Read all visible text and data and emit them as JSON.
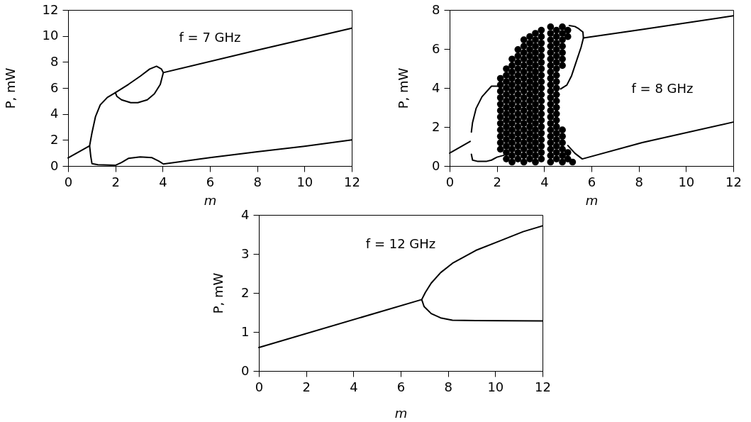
{
  "chart_data": [
    {
      "type": "line",
      "annotations": [
        "f = 7 GHz"
      ],
      "xlabel": "m",
      "ylabel": "P, mW",
      "xlim": [
        0,
        12
      ],
      "ylim": [
        0,
        12
      ],
      "xticks": [
        0,
        2,
        4,
        6,
        8,
        10,
        12
      ],
      "yticks": [
        0,
        2,
        4,
        6,
        8,
        10,
        12
      ],
      "series": [
        {
          "color": "#000000",
          "x": [
            0,
            0.91,
            1.01,
            1.16,
            1.36,
            1.66,
            2.0,
            2.55,
            3.05,
            3.45,
            3.74,
            3.95,
            4.03,
            8.0,
            12
          ],
          "values": [
            0.62,
            1.55,
            2.55,
            3.8,
            4.7,
            5.27,
            5.64,
            6.27,
            6.9,
            7.45,
            7.67,
            7.45,
            7.18,
            8.9,
            10.6
          ]
        },
        {
          "color": "#000000",
          "x": [
            2.0,
            2.06,
            2.26,
            2.65,
            2.95,
            3.35,
            3.65,
            3.9,
            4.03
          ],
          "values": [
            5.64,
            5.36,
            5.09,
            4.87,
            4.87,
            5.09,
            5.55,
            6.27,
            7.18
          ]
        },
        {
          "color": "#000000",
          "x": [
            0.91,
            0.96,
            1.01,
            1.26,
            2.0,
            2.26,
            2.55,
            3.05,
            3.55,
            3.85,
            4.03,
            6.0,
            8.0,
            10.0,
            12
          ],
          "values": [
            1.55,
            0.73,
            0.18,
            0.09,
            0.05,
            0.27,
            0.58,
            0.69,
            0.64,
            0.36,
            0.15,
            0.64,
            1.09,
            1.51,
            2.0
          ]
        }
      ]
    },
    {
      "type": "line",
      "annotations": [
        "f = 8 GHz"
      ],
      "xlabel": "m",
      "ylabel": "P, mW",
      "xlim": [
        0,
        12
      ],
      "ylim": [
        0,
        8
      ],
      "xticks": [
        0,
        2,
        4,
        6,
        8,
        10,
        12
      ],
      "yticks": [
        0,
        2,
        4,
        6,
        8
      ],
      "series": [
        {
          "color": "#000000",
          "x": [
            0,
            0.87
          ],
          "values": [
            0.66,
            1.26
          ]
        },
        {
          "color": "#000000",
          "x": [
            0.92,
            0.97,
            1.12,
            1.37,
            1.77,
            2.07
          ],
          "values": [
            1.74,
            2.23,
            2.95,
            3.55,
            4.09,
            4.09
          ]
        },
        {
          "color": "#000000",
          "x": [
            0.92,
            0.97,
            1.17,
            1.57,
            1.77,
            2.0,
            2.3
          ],
          "values": [
            0.6,
            0.3,
            0.24,
            0.24,
            0.3,
            0.45,
            0.55
          ]
        },
        {
          "type": "scatter",
          "marker": "circle",
          "color": "#000000",
          "x": [
            2.15,
            2.15,
            2.15,
            2.15,
            2.15,
            2.15,
            2.15,
            2.15,
            2.15,
            2.15,
            2.15,
            2.15,
            2.4,
            2.4,
            2.4,
            2.4,
            2.4,
            2.4,
            2.4,
            2.4,
            2.4,
            2.4,
            2.4,
            2.4,
            2.4,
            2.4,
            2.4,
            2.64,
            2.64,
            2.64,
            2.64,
            2.64,
            2.64,
            2.64,
            2.64,
            2.64,
            2.64,
            2.64,
            2.64,
            2.64,
            2.64,
            2.64,
            2.64,
            2.64,
            2.89,
            2.89,
            2.89,
            2.89,
            2.89,
            2.89,
            2.89,
            2.89,
            2.89,
            2.89,
            2.89,
            2.89,
            2.89,
            2.89,
            2.89,
            2.89,
            2.89,
            2.89,
            3.14,
            3.14,
            3.14,
            3.14,
            3.14,
            3.14,
            3.14,
            3.14,
            3.14,
            3.14,
            3.14,
            3.14,
            3.14,
            3.14,
            3.14,
            3.14,
            3.14,
            3.14,
            3.14,
            3.14,
            3.39,
            3.39,
            3.39,
            3.39,
            3.39,
            3.39,
            3.39,
            3.39,
            3.39,
            3.39,
            3.39,
            3.39,
            3.39,
            3.39,
            3.39,
            3.39,
            3.39,
            3.39,
            3.39,
            3.39,
            3.63,
            3.63,
            3.63,
            3.63,
            3.63,
            3.63,
            3.63,
            3.63,
            3.63,
            3.63,
            3.63,
            3.63,
            3.63,
            3.63,
            3.63,
            3.63,
            3.63,
            3.63,
            3.63,
            3.63,
            3.63,
            3.88,
            3.88,
            3.88,
            3.88,
            3.88,
            3.88,
            3.88,
            3.88,
            3.88,
            3.88,
            3.88,
            3.88,
            3.88,
            3.88,
            3.88,
            3.88,
            3.88,
            3.88,
            3.88,
            3.88,
            3.88
          ],
          "values": [
            0.86,
            1.19,
            1.52,
            1.85,
            2.18,
            2.51,
            2.84,
            3.17,
            3.5,
            3.83,
            4.16,
            4.49,
            0.36,
            0.69,
            1.02,
            1.35,
            1.68,
            2.01,
            2.34,
            2.67,
            3.0,
            3.33,
            3.66,
            3.99,
            4.32,
            4.65,
            4.98,
            0.2,
            0.53,
            0.86,
            1.19,
            1.52,
            1.85,
            2.18,
            2.51,
            2.84,
            3.17,
            3.5,
            3.83,
            4.16,
            4.49,
            4.82,
            5.15,
            5.48,
            0.36,
            0.69,
            1.02,
            1.35,
            1.68,
            2.01,
            2.34,
            2.67,
            3.0,
            3.33,
            3.66,
            3.99,
            4.32,
            4.65,
            4.98,
            5.31,
            5.64,
            5.97,
            0.2,
            0.53,
            0.86,
            1.19,
            1.52,
            1.85,
            2.18,
            2.51,
            2.84,
            3.17,
            3.5,
            3.83,
            4.16,
            4.49,
            4.82,
            5.15,
            5.48,
            5.81,
            6.14,
            6.47,
            0.36,
            0.69,
            1.02,
            1.35,
            1.68,
            2.01,
            2.34,
            2.67,
            3.0,
            3.33,
            3.66,
            3.99,
            4.32,
            4.65,
            4.98,
            5.31,
            5.64,
            5.97,
            6.3,
            6.63,
            0.2,
            0.53,
            0.86,
            1.19,
            1.52,
            1.85,
            2.18,
            2.51,
            2.84,
            3.17,
            3.5,
            3.83,
            4.16,
            4.49,
            4.82,
            5.15,
            5.48,
            5.81,
            6.14,
            6.47,
            6.8,
            0.36,
            0.69,
            1.02,
            1.35,
            1.68,
            2.01,
            2.34,
            2.67,
            3.0,
            3.33,
            3.66,
            3.99,
            4.32,
            4.65,
            4.98,
            5.31,
            5.64,
            5.97,
            6.3,
            6.63,
            6.96
          ]
        },
        {
          "type": "scatter",
          "marker": "circle",
          "color": "#000000",
          "x": [
            4.27,
            4.27,
            4.27,
            4.27,
            4.27,
            4.27,
            4.27,
            4.27,
            4.27,
            4.27,
            4.27,
            4.27,
            4.27,
            4.27,
            4.27,
            4.27,
            4.27,
            4.27,
            4.27,
            4.27,
            4.27,
            4.27,
            4.52,
            4.52,
            4.52,
            4.52,
            4.52,
            4.52,
            4.52,
            4.52,
            4.52,
            4.52,
            4.52,
            4.52,
            4.52,
            4.52,
            4.52,
            4.52,
            4.52,
            4.52,
            4.52,
            4.52,
            4.52,
            4.77,
            4.77,
            4.77,
            4.77,
            4.77,
            4.77,
            4.77,
            4.77,
            4.77,
            4.77,
            4.77,
            4.77,
            4.77,
            5.0,
            5.0,
            5.0,
            5.0,
            5.2
          ],
          "values": [
            0.2,
            0.53,
            0.86,
            1.19,
            1.52,
            1.85,
            2.18,
            2.51,
            2.84,
            3.17,
            3.5,
            3.83,
            4.16,
            4.49,
            4.82,
            5.15,
            5.48,
            5.81,
            6.14,
            6.47,
            6.8,
            7.13,
            0.36,
            0.69,
            1.02,
            1.35,
            1.68,
            2.01,
            2.34,
            2.67,
            3.0,
            3.33,
            3.66,
            3.99,
            4.32,
            4.65,
            4.98,
            5.31,
            5.64,
            5.97,
            6.3,
            6.63,
            6.96,
            0.2,
            0.53,
            0.86,
            1.19,
            1.52,
            1.85,
            5.15,
            5.48,
            5.81,
            6.14,
            6.47,
            6.8,
            7.13,
            0.36,
            0.69,
            6.63,
            6.96,
            0.2
          ]
        },
        {
          "color": "#000000",
          "x": [
            5.06,
            5.3,
            5.46,
            5.64,
            5.66,
            8.15,
            12
          ],
          "values": [
            7.2,
            7.15,
            7.04,
            6.86,
            6.56,
            7.0,
            7.7
          ]
        },
        {
          "color": "#000000",
          "x": [
            5.66,
            5.56,
            5.36,
            5.16,
            4.96,
            4.7
          ],
          "values": [
            6.56,
            6.08,
            5.36,
            4.63,
            4.15,
            3.95
          ]
        },
        {
          "color": "#000000",
          "x": [
            5.0,
            5.3,
            5.61,
            8.15,
            12
          ],
          "values": [
            1.05,
            0.65,
            0.36,
            1.2,
            2.25
          ]
        }
      ]
    },
    {
      "type": "line",
      "annotations": [
        "f = 12 GHz"
      ],
      "xlabel": "m",
      "ylabel": "P, mW",
      "xlim": [
        0,
        12
      ],
      "ylim": [
        0,
        4
      ],
      "xticks": [
        0,
        2,
        4,
        6,
        8,
        10,
        12
      ],
      "yticks": [
        0,
        1,
        2,
        3,
        4
      ],
      "series": [
        {
          "color": "#000000",
          "x": [
            0,
            6.89,
            7.04,
            7.29,
            7.69,
            8.19,
            9.18,
            10.18,
            11.18,
            12
          ],
          "values": [
            0.6,
            1.83,
            2.01,
            2.25,
            2.52,
            2.76,
            3.09,
            3.33,
            3.57,
            3.72
          ]
        },
        {
          "color": "#000000",
          "x": [
            6.89,
            6.99,
            7.29,
            7.69,
            8.19,
            9.18,
            12
          ],
          "values": [
            1.83,
            1.65,
            1.47,
            1.36,
            1.3,
            1.29,
            1.28
          ]
        }
      ]
    }
  ]
}
